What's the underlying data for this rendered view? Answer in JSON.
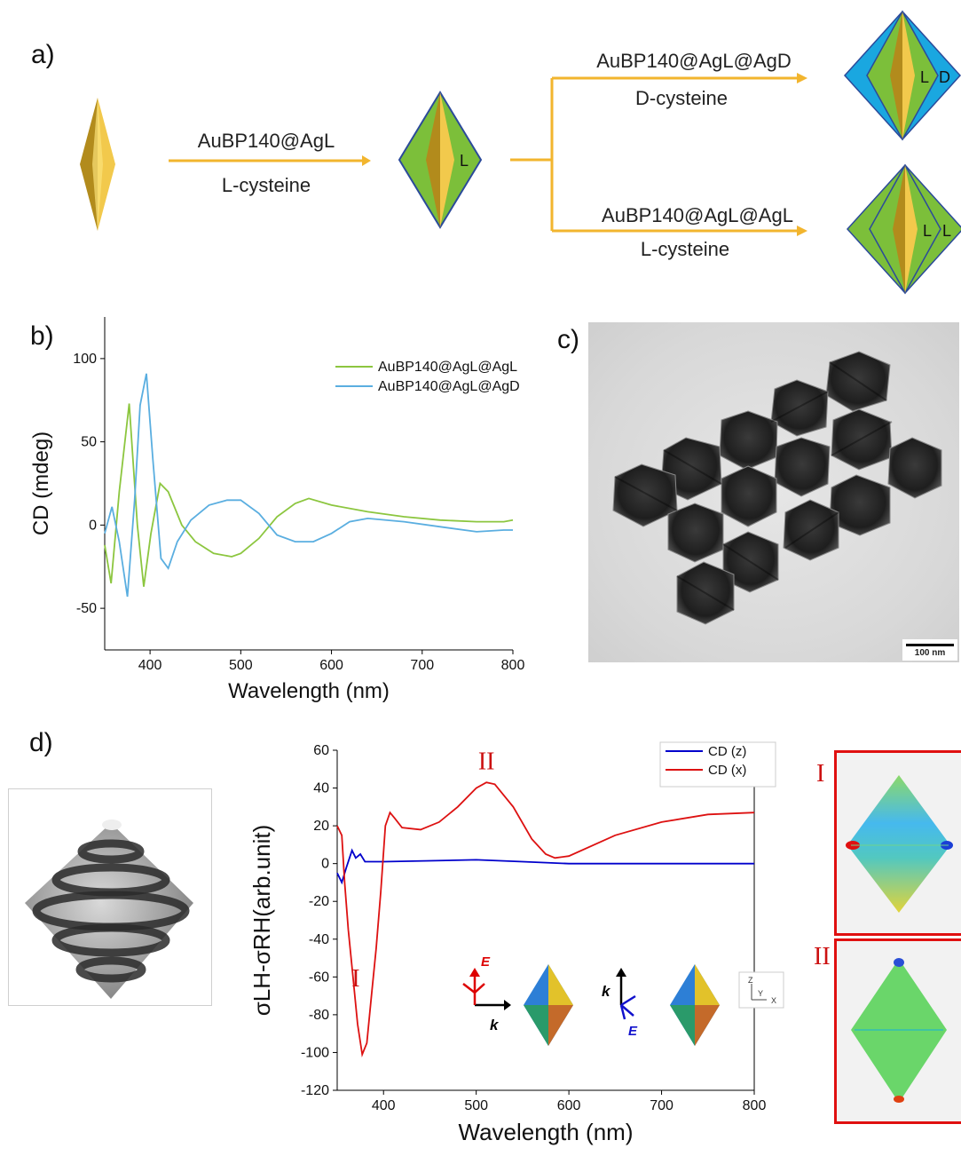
{
  "panels": {
    "a": "a)",
    "b": "b)",
    "c": "c)",
    "d": "d)"
  },
  "scheme": {
    "step1": {
      "label": "AuBP140@AgL",
      "ligand": "L-cysteine",
      "shell_letter": "L"
    },
    "step2_top": {
      "label": "AuBP140@AgL@AgD",
      "ligand": "D-cysteine",
      "shell_letters": [
        "L",
        "D"
      ]
    },
    "step2_bottom": {
      "label": "AuBP140@AgL@AgL",
      "ligand": "L-cysteine",
      "shell_letters": [
        "L",
        "L"
      ]
    },
    "colors": {
      "arrow": "#f2b52e",
      "gold": "#f0c040",
      "green": "#7cbf3a",
      "blue": "#1aa7e0",
      "outline": "#2b4a9a"
    }
  },
  "tem": {
    "scale_bar": "100 nm"
  },
  "chart_data": [
    {
      "type": "line",
      "panel": "b",
      "xlabel": "Wavelength (nm)",
      "ylabel": "CD (mdeg)",
      "xlim": [
        350,
        800
      ],
      "ylim": [
        -75,
        125
      ],
      "xticks": [
        400,
        500,
        600,
        700,
        800
      ],
      "yticks": [
        -50,
        0,
        50,
        100
      ],
      "legend_position": "top-right",
      "series": [
        {
          "name": "AuBP140@AgL@AgL",
          "color": "#8cc63f",
          "x": [
            350,
            357,
            366,
            377,
            386,
            393,
            401,
            411,
            420,
            435,
            450,
            470,
            490,
            500,
            520,
            540,
            560,
            575,
            600,
            640,
            680,
            720,
            760,
            790,
            800
          ],
          "y": [
            -12,
            -35,
            20,
            73,
            0,
            -37,
            -5,
            25,
            20,
            0,
            -10,
            -17,
            -19,
            -17,
            -8,
            5,
            13,
            16,
            12,
            8,
            5,
            3,
            2,
            2,
            3
          ]
        },
        {
          "name": "AuBP140@AgL@AgD",
          "color": "#5aaee0",
          "x": [
            350,
            358,
            366,
            375,
            383,
            389,
            396,
            403,
            412,
            420,
            430,
            445,
            465,
            485,
            500,
            520,
            540,
            560,
            580,
            600,
            620,
            640,
            680,
            720,
            760,
            790,
            800
          ],
          "y": [
            -5,
            11,
            -10,
            -43,
            15,
            72,
            91,
            40,
            -20,
            -26,
            -10,
            3,
            12,
            15,
            15,
            7,
            -6,
            -10,
            -10,
            -5,
            2,
            4,
            2,
            -1,
            -4,
            -3,
            -3
          ]
        }
      ]
    },
    {
      "type": "line",
      "panel": "d",
      "xlabel": "Wavelength (nm)",
      "ylabel": "σLH-σRH(arb.unit)",
      "xlim": [
        350,
        800
      ],
      "ylim": [
        -120,
        60
      ],
      "xticks": [
        400,
        500,
        600,
        700,
        800
      ],
      "yticks": [
        -120,
        -100,
        -80,
        -60,
        -40,
        -20,
        0,
        20,
        40,
        60
      ],
      "legend_position": "top-right",
      "annotations": [
        {
          "text": "I",
          "x": 370,
          "y": -65
        },
        {
          "text": "II",
          "x": 511,
          "y": 50
        }
      ],
      "series": [
        {
          "name": "CD (z)",
          "color": "#0000cc",
          "x": [
            350,
            355,
            360,
            366,
            370,
            375,
            380,
            390,
            400,
            450,
            500,
            550,
            600,
            700,
            800
          ],
          "y": [
            -5,
            -10,
            -2,
            7,
            3,
            5,
            1,
            1,
            1,
            1.5,
            2,
            1,
            0,
            0,
            0
          ]
        },
        {
          "name": "CD (x)",
          "color": "#dd1111",
          "x": [
            350,
            355,
            358,
            362,
            367,
            372,
            377,
            382,
            387,
            392,
            397,
            402,
            407,
            412,
            420,
            440,
            460,
            480,
            500,
            511,
            520,
            540,
            560,
            575,
            585,
            600,
            650,
            700,
            750,
            800
          ],
          "y": [
            20,
            15,
            -10,
            -35,
            -60,
            -85,
            -101,
            -95,
            -70,
            -45,
            -15,
            20,
            27,
            24,
            19,
            18,
            22,
            30,
            40,
            43,
            42,
            30,
            13,
            5,
            3,
            4,
            15,
            22,
            26,
            27
          ]
        }
      ]
    }
  ],
  "insets": {
    "vector_E": "E",
    "vector_k": "k",
    "axes_z": "Z",
    "axes_y": "Y",
    "axes_x": "X",
    "field_labels": [
      "I",
      "II"
    ]
  }
}
